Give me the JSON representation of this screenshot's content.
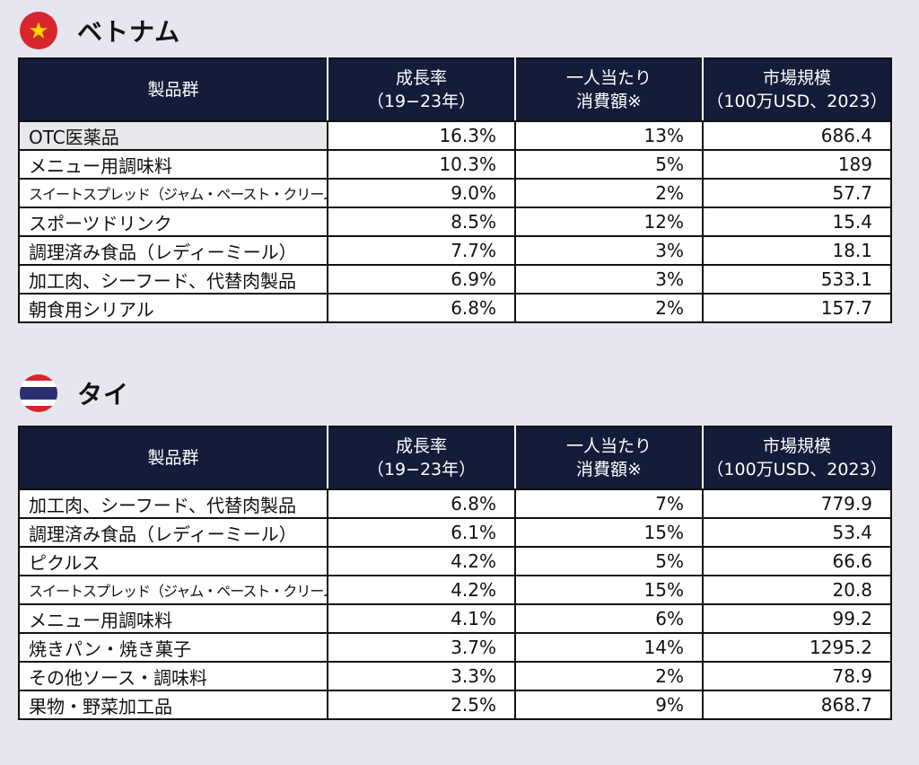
{
  "vietnam": {
    "title": "ベトナム",
    "headers": {
      "product": "製品群",
      "growth_1": "成長率",
      "growth_2": "（19−23年）",
      "spend_1": "一人当たり",
      "spend_2": "消費額※",
      "market_1": "市場規模",
      "market_2": "（100万USD、2023）"
    },
    "rows": [
      {
        "product": "OTC医薬品",
        "growth": "16.3%",
        "spend": "13%",
        "market": "686.4"
      },
      {
        "product": "メニュー用調味料",
        "growth": "10.3%",
        "spend": "5%",
        "market": "189"
      },
      {
        "product": "スイートスプレッド（ジャム・ペースト・クリーム等）",
        "growth": "9.0%",
        "spend": "2%",
        "market": "57.7"
      },
      {
        "product": "スポーツドリンク",
        "growth": "8.5%",
        "spend": "12%",
        "market": "15.4"
      },
      {
        "product": "調理済み食品（レディーミール）",
        "growth": "7.7%",
        "spend": "3%",
        "market": "18.1"
      },
      {
        "product": "加工肉、シーフード、代替肉製品",
        "growth": "6.9%",
        "spend": "3%",
        "market": "533.1"
      },
      {
        "product": "朝食用シリアル",
        "growth": "6.8%",
        "spend": "2%",
        "market": "157.7"
      }
    ],
    "flag_colors": {
      "field": "#d8262d",
      "star": "#ffd400"
    }
  },
  "thailand": {
    "title": "タイ",
    "headers": {
      "product": "製品群",
      "growth_1": "成長率",
      "growth_2": "（19−23年）",
      "spend_1": "一人当たり",
      "spend_2": "消費額※",
      "market_1": "市場規模",
      "market_2": "（100万USD、2023）"
    },
    "rows": [
      {
        "product": "加工肉、シーフード、代替肉製品",
        "growth": "6.8%",
        "spend": "7%",
        "market": "779.9"
      },
      {
        "product": "調理済み食品（レディーミール）",
        "growth": "6.1%",
        "spend": "15%",
        "market": "53.4"
      },
      {
        "product": "ピクルス",
        "growth": "4.2%",
        "spend": "5%",
        "market": "66.6"
      },
      {
        "product": "スイートスプレッド（ジャム・ペースト・クリーム等）",
        "growth": "4.2%",
        "spend": "15%",
        "market": "20.8"
      },
      {
        "product": "メニュー用調味料",
        "growth": "4.1%",
        "spend": "6%",
        "market": "99.2"
      },
      {
        "product": "焼きパン・焼き菓子",
        "growth": "3.7%",
        "spend": "14%",
        "market": "1295.2"
      },
      {
        "product": "その他ソース・調味料",
        "growth": "3.3%",
        "spend": "2%",
        "market": "78.9"
      },
      {
        "product": "果物・野菜加工品",
        "growth": "2.5%",
        "spend": "9%",
        "market": "868.7"
      }
    ],
    "flag_colors": {
      "red": "#d8262d",
      "white": "#ffffff",
      "blue": "#2a2f6e"
    }
  },
  "theme": {
    "header_bg": "#141c3a",
    "page_bg": "#e6e6ee"
  }
}
